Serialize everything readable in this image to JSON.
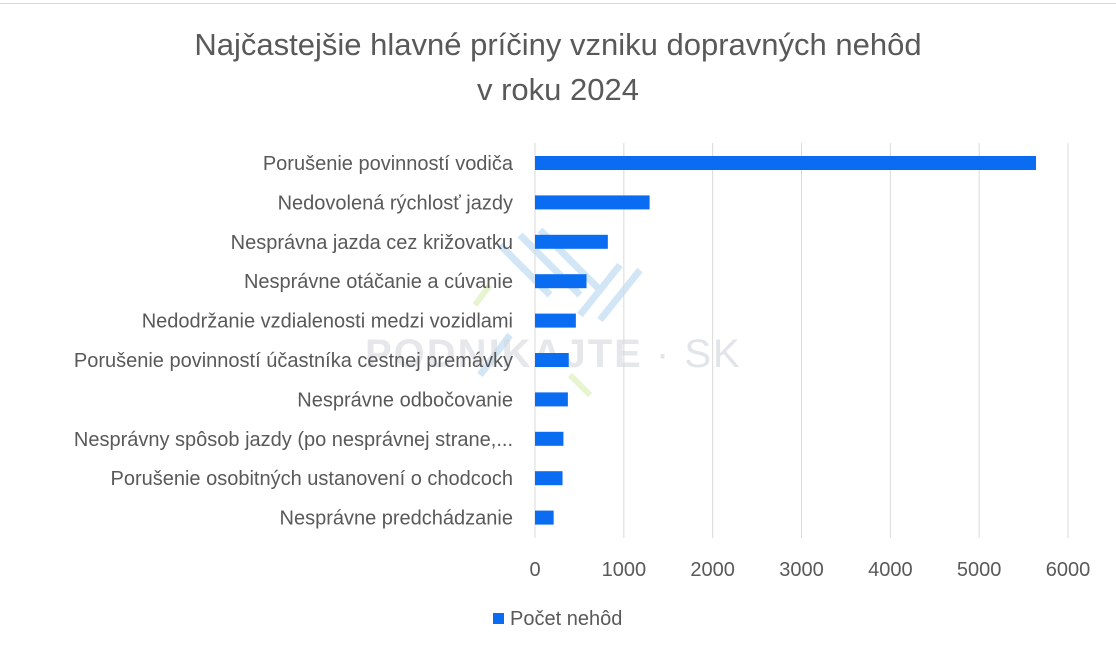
{
  "title": {
    "line1": "Najčastejšie hlavné príčiny vzniku dopravných nehôd",
    "line2": "v roku 2024"
  },
  "watermark": {
    "brand": "PODNIKAJTE",
    "suffix": "SK"
  },
  "colors": {
    "bar": "#0a6cf0",
    "grid": "#d9d9d9",
    "text": "#595959"
  },
  "chart_data": {
    "type": "bar",
    "orientation": "horizontal",
    "title": "Najčastejšie hlavné príčiny vzniku dopravných nehôd v roku 2024",
    "categories": [
      "Porušenie povinností vodiča",
      "Nedovolená rýchlosť jazdy",
      "Nesprávna jazda cez križovatku",
      "Nesprávne otáčanie a cúvanie",
      "Nedodržanie vzdialenosti medzi vozidlami",
      "Porušenie povinností účastníka cestnej premávky",
      "Nesprávne odbočovanie",
      "Nesprávny spôsob jazdy (po nesprávnej strane,...",
      "Porušenie osobitných ustanovení o chodcoch",
      "Nesprávne predchádzanie"
    ],
    "series": [
      {
        "name": "Počet nehôd",
        "values": [
          5640,
          1290,
          820,
          580,
          460,
          380,
          370,
          320,
          310,
          210
        ]
      }
    ],
    "xlim": [
      0,
      6000
    ],
    "xticks": [
      0,
      1000,
      2000,
      3000,
      4000,
      5000,
      6000
    ],
    "grid": true,
    "legend": "bottom"
  }
}
